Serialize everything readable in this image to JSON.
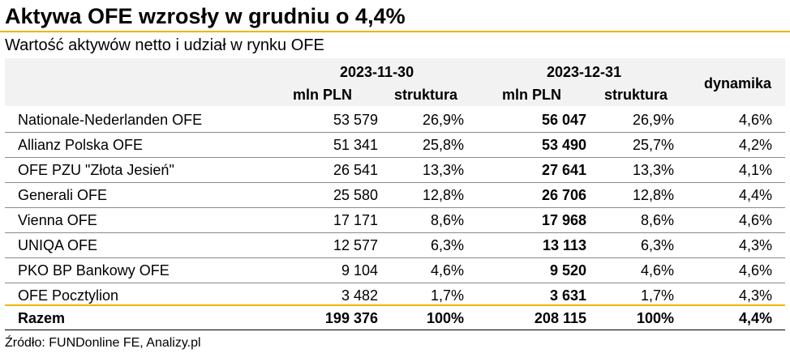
{
  "title": "Aktywa OFE wzrosły w grudniu o 4,4%",
  "subtitle": "Wartość aktywów netto i udział w rynku OFE",
  "columns": {
    "date1": "2023-11-30",
    "date2": "2023-12-31",
    "value": "mln PLN",
    "share": "struktura",
    "dynamics": "dynamika"
  },
  "colors": {
    "accent": "#f2b400",
    "header_bg": "#f2f2f2"
  },
  "rows": [
    {
      "name": "Nationale-Nederlanden OFE",
      "v1": "53 579",
      "s1": "26,9%",
      "v2": "56 047",
      "s2": "26,9%",
      "dyn": "4,6%"
    },
    {
      "name": "Allianz Polska OFE",
      "v1": "51 341",
      "s1": "25,8%",
      "v2": "53 490",
      "s2": "25,7%",
      "dyn": "4,2%"
    },
    {
      "name": "OFE PZU \"Złota Jesień\"",
      "v1": "26 541",
      "s1": "13,3%",
      "v2": "27 641",
      "s2": "13,3%",
      "dyn": "4,1%"
    },
    {
      "name": "Generali OFE",
      "v1": "25 580",
      "s1": "12,8%",
      "v2": "26 706",
      "s2": "12,8%",
      "dyn": "4,4%"
    },
    {
      "name": "Vienna OFE",
      "v1": "17 171",
      "s1": "8,6%",
      "v2": "17 968",
      "s2": "8,6%",
      "dyn": "4,6%"
    },
    {
      "name": "UNIQA OFE",
      "v1": "12 577",
      "s1": "6,3%",
      "v2": "13 113",
      "s2": "6,3%",
      "dyn": "4,3%"
    },
    {
      "name": "PKO BP Bankowy OFE",
      "v1": "9 104",
      "s1": "4,6%",
      "v2": "9 520",
      "s2": "4,6%",
      "dyn": "4,6%"
    },
    {
      "name": "OFE Pocztylion",
      "v1": "3 482",
      "s1": "1,7%",
      "v2": "3 631",
      "s2": "1,7%",
      "dyn": "4,3%"
    }
  ],
  "total": {
    "name": "Razem",
    "v1": "199 376",
    "s1": "100%",
    "v2": "208 115",
    "s2": "100%",
    "dyn": "4,4%"
  },
  "source": "Źródło: FUNDonline FE, Analizy.pl"
}
